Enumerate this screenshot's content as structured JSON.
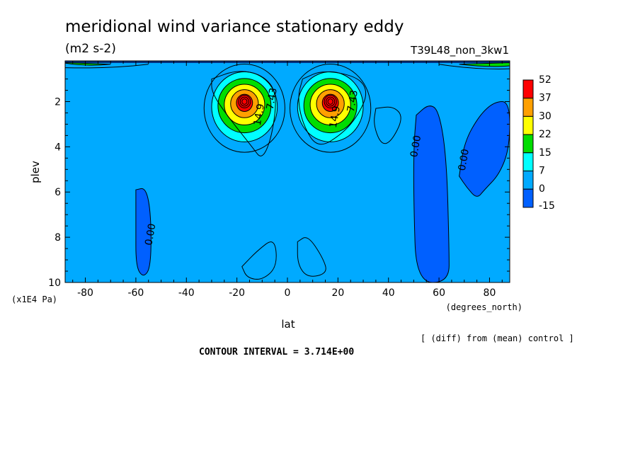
{
  "chart_data": {
    "type": "contour",
    "title": "meridional wind variance  stationary eddy",
    "units": "(m2 s-2)",
    "experiment": "T39L48_non_3kw1",
    "xlabel": "lat",
    "xunits": "(degrees_north)",
    "ylabel": "plev",
    "yunits": "(x1E4 Pa)",
    "xlim": [
      -88,
      88
    ],
    "ylim": [
      10,
      0.2
    ],
    "xticks": [
      -80,
      -60,
      -40,
      -20,
      0,
      20,
      40,
      60,
      80
    ],
    "xtick_labels": [
      "-80",
      "-60",
      "-40",
      "-20",
      "0",
      "20",
      "40",
      "60",
      "80"
    ],
    "yticks": [
      2,
      4,
      6,
      8,
      10
    ],
    "ytick_labels": [
      "2",
      "4",
      "6",
      "8",
      "10"
    ],
    "grid": false,
    "note": "[ (diff) from (mean) control ]",
    "contour_interval_text": "CONTOUR INTERVAL = 3.714E+00",
    "contour_labels": [
      {
        "text": "0.00",
        "x": -53,
        "y": 7.9
      },
      {
        "text": "0.00",
        "x": 52,
        "y": 4.0
      },
      {
        "text": "0.00",
        "x": 71,
        "y": 4.6
      },
      {
        "text": "14.9",
        "x": -10,
        "y": 2.6
      },
      {
        "text": "7.43",
        "x": -5,
        "y": 1.9
      },
      {
        "text": "14.9",
        "x": 20,
        "y": 2.7
      },
      {
        "text": "7.43",
        "x": 27,
        "y": 2.0
      }
    ],
    "colorbar": {
      "levels": [
        "52",
        "37",
        "30",
        "22",
        "15",
        "7",
        "0",
        "-15"
      ],
      "colors": [
        "#ff0000",
        "#ffa000",
        "#ffff00",
        "#00dd00",
        "#00ffff",
        "#00aaff",
        "#0060ff"
      ]
    },
    "maxima": [
      {
        "x": -17,
        "y": 2.0,
        "value": 52
      },
      {
        "x": 17,
        "y": 2.0,
        "value": 52
      }
    ]
  }
}
